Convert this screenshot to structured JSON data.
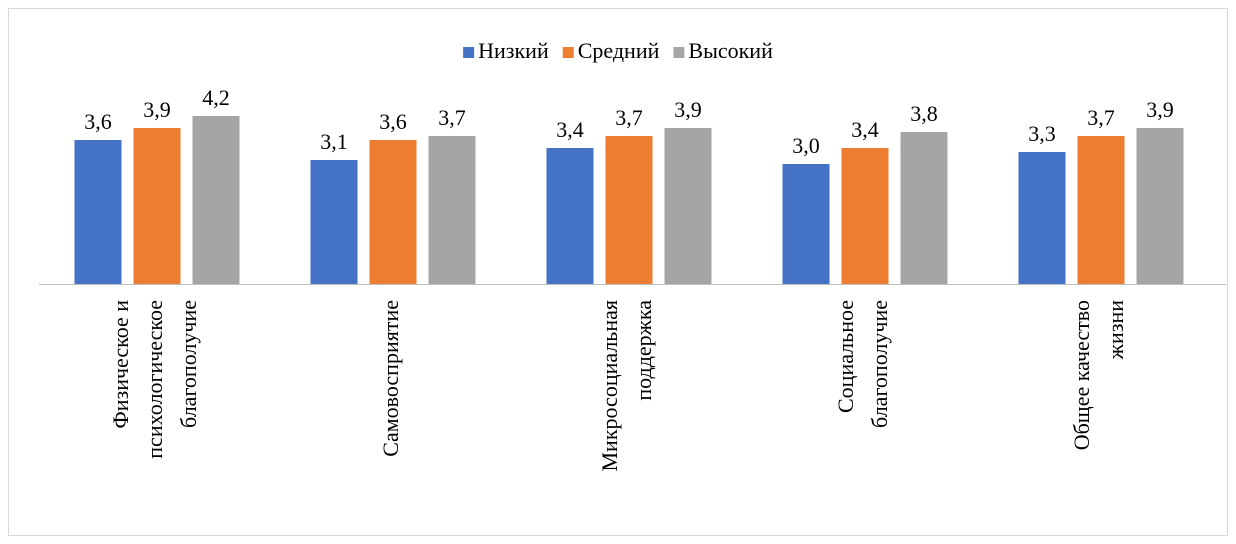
{
  "chart_data": {
    "type": "bar",
    "categories": [
      [
        "Физическое и",
        "психологическое",
        "благополучие"
      ],
      [
        "Самовосприятие"
      ],
      [
        "Микросоциальная",
        "поддержка"
      ],
      [
        "Социальное",
        "благополучие"
      ],
      [
        "Общее качество",
        "жизни"
      ]
    ],
    "series": [
      {
        "name": "Низкий",
        "color": "#4472c4",
        "values": [
          3.6,
          3.1,
          3.4,
          3.0,
          3.3
        ],
        "value_labels": [
          "3,6",
          "3,1",
          "3,4",
          "3,0",
          "3,3"
        ]
      },
      {
        "name": "Средний",
        "color": "#ed7d31",
        "values": [
          3.9,
          3.6,
          3.7,
          3.4,
          3.7
        ],
        "value_labels": [
          "3,9",
          "3,6",
          "3,7",
          "3,4",
          "3,7"
        ]
      },
      {
        "name": "Высокий",
        "color": "#a5a5a5",
        "values": [
          4.2,
          3.7,
          3.9,
          3.8,
          3.9
        ],
        "value_labels": [
          "4,2",
          "3,7",
          "3,9",
          "3,8",
          "3,9"
        ]
      }
    ],
    "legend": "top"
  }
}
